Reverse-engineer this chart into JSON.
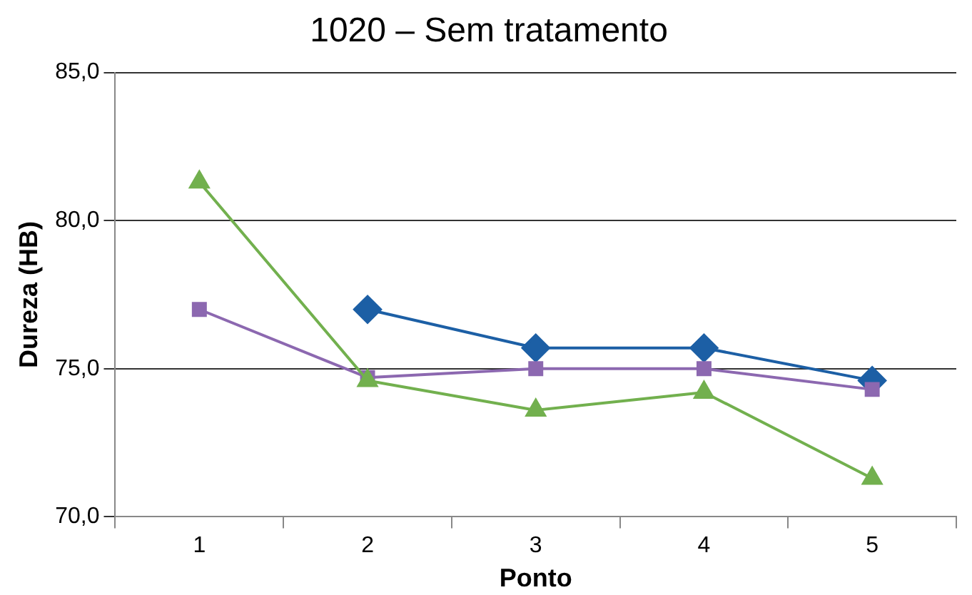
{
  "chart_data": {
    "type": "line",
    "title": "1020 – Sem tratamento",
    "xlabel": "Ponto",
    "ylabel": "Dureza (HB)",
    "categories": [
      "1",
      "2",
      "3",
      "4",
      "5"
    ],
    "series": [
      {
        "color": "#1c5fa5",
        "marker": "diamond",
        "values": [
          null,
          77.0,
          75.7,
          75.7,
          74.6
        ]
      },
      {
        "color": "#8c68b0",
        "marker": "square",
        "values": [
          77.0,
          74.7,
          75.0,
          75.0,
          74.3
        ]
      },
      {
        "color": "#72b04e",
        "marker": "triangle",
        "values": [
          81.3,
          74.6,
          73.6,
          74.2,
          71.3
        ]
      }
    ],
    "ylim": [
      70,
      85
    ],
    "yticks": [
      {
        "value": 70,
        "label": "70,0"
      },
      {
        "value": 75,
        "label": "75,0"
      },
      {
        "value": 80,
        "label": "80,0"
      },
      {
        "value": 85,
        "label": "85,0"
      }
    ],
    "grid": "y",
    "legend": false
  }
}
